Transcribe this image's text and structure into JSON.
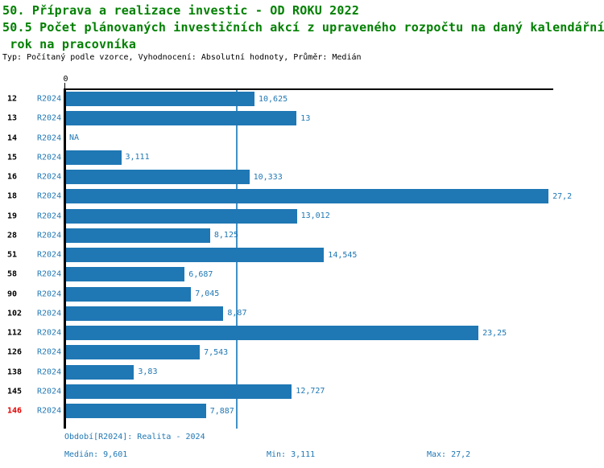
{
  "header": {
    "title_line1": "50. Příprava a realizace investic - OD ROKU 2022",
    "title_line2": "50.5 Počet plánovaných investičních akcí z upraveného rozpočtu na daný kalendářní",
    "title_line3": " rok na pracovníka",
    "subtitle": "Typ: Počítaný podle vzorce, Vyhodnocení: Absolutní hodnoty, Průměr: Medián",
    "title_color": "#008000"
  },
  "chart_data": {
    "type": "bar",
    "orientation": "horizontal",
    "title": "50.5 Počet plánovaných investičních akcí z upraveného rozpočtu na daný kalendářní rok na pracovníka",
    "categories": [
      "12",
      "13",
      "14",
      "15",
      "16",
      "18",
      "19",
      "28",
      "51",
      "58",
      "90",
      "102",
      "112",
      "126",
      "138",
      "145",
      "146"
    ],
    "series_label": "R2024",
    "values": [
      10.625,
      13,
      null,
      3.111,
      10.333,
      27.2,
      13.012,
      8.125,
      14.545,
      6.687,
      7.045,
      8.87,
      23.25,
      7.543,
      3.83,
      12.727,
      7.887
    ],
    "value_labels": [
      "10,625",
      "13",
      "NA",
      "3,111",
      "10,333",
      "27,2",
      "13,012",
      "8,125",
      "14,545",
      "6,687",
      "7,045",
      "8,87",
      "23,25",
      "7,543",
      "3,83",
      "12,727",
      "7,887"
    ],
    "na_label": "NA",
    "highlighted_category": "146",
    "zero_tick_label": "0",
    "xlim": [
      0,
      27.47
    ],
    "median_value": 9.601,
    "grid": false,
    "legend_position": "none",
    "bar_color": "#1f77b4",
    "value_label_color": "#1f77b4",
    "series_label_color": "#1f77b4",
    "category_label_color": "#000000",
    "highlight_color": "#e10000",
    "median_line_color": "#4292c6"
  },
  "footer": {
    "period": "Období[R2024]: Realita - 2024",
    "median": "Medián: 9,601",
    "min": "Min: 3,111",
    "max": "Max: 27,2"
  }
}
